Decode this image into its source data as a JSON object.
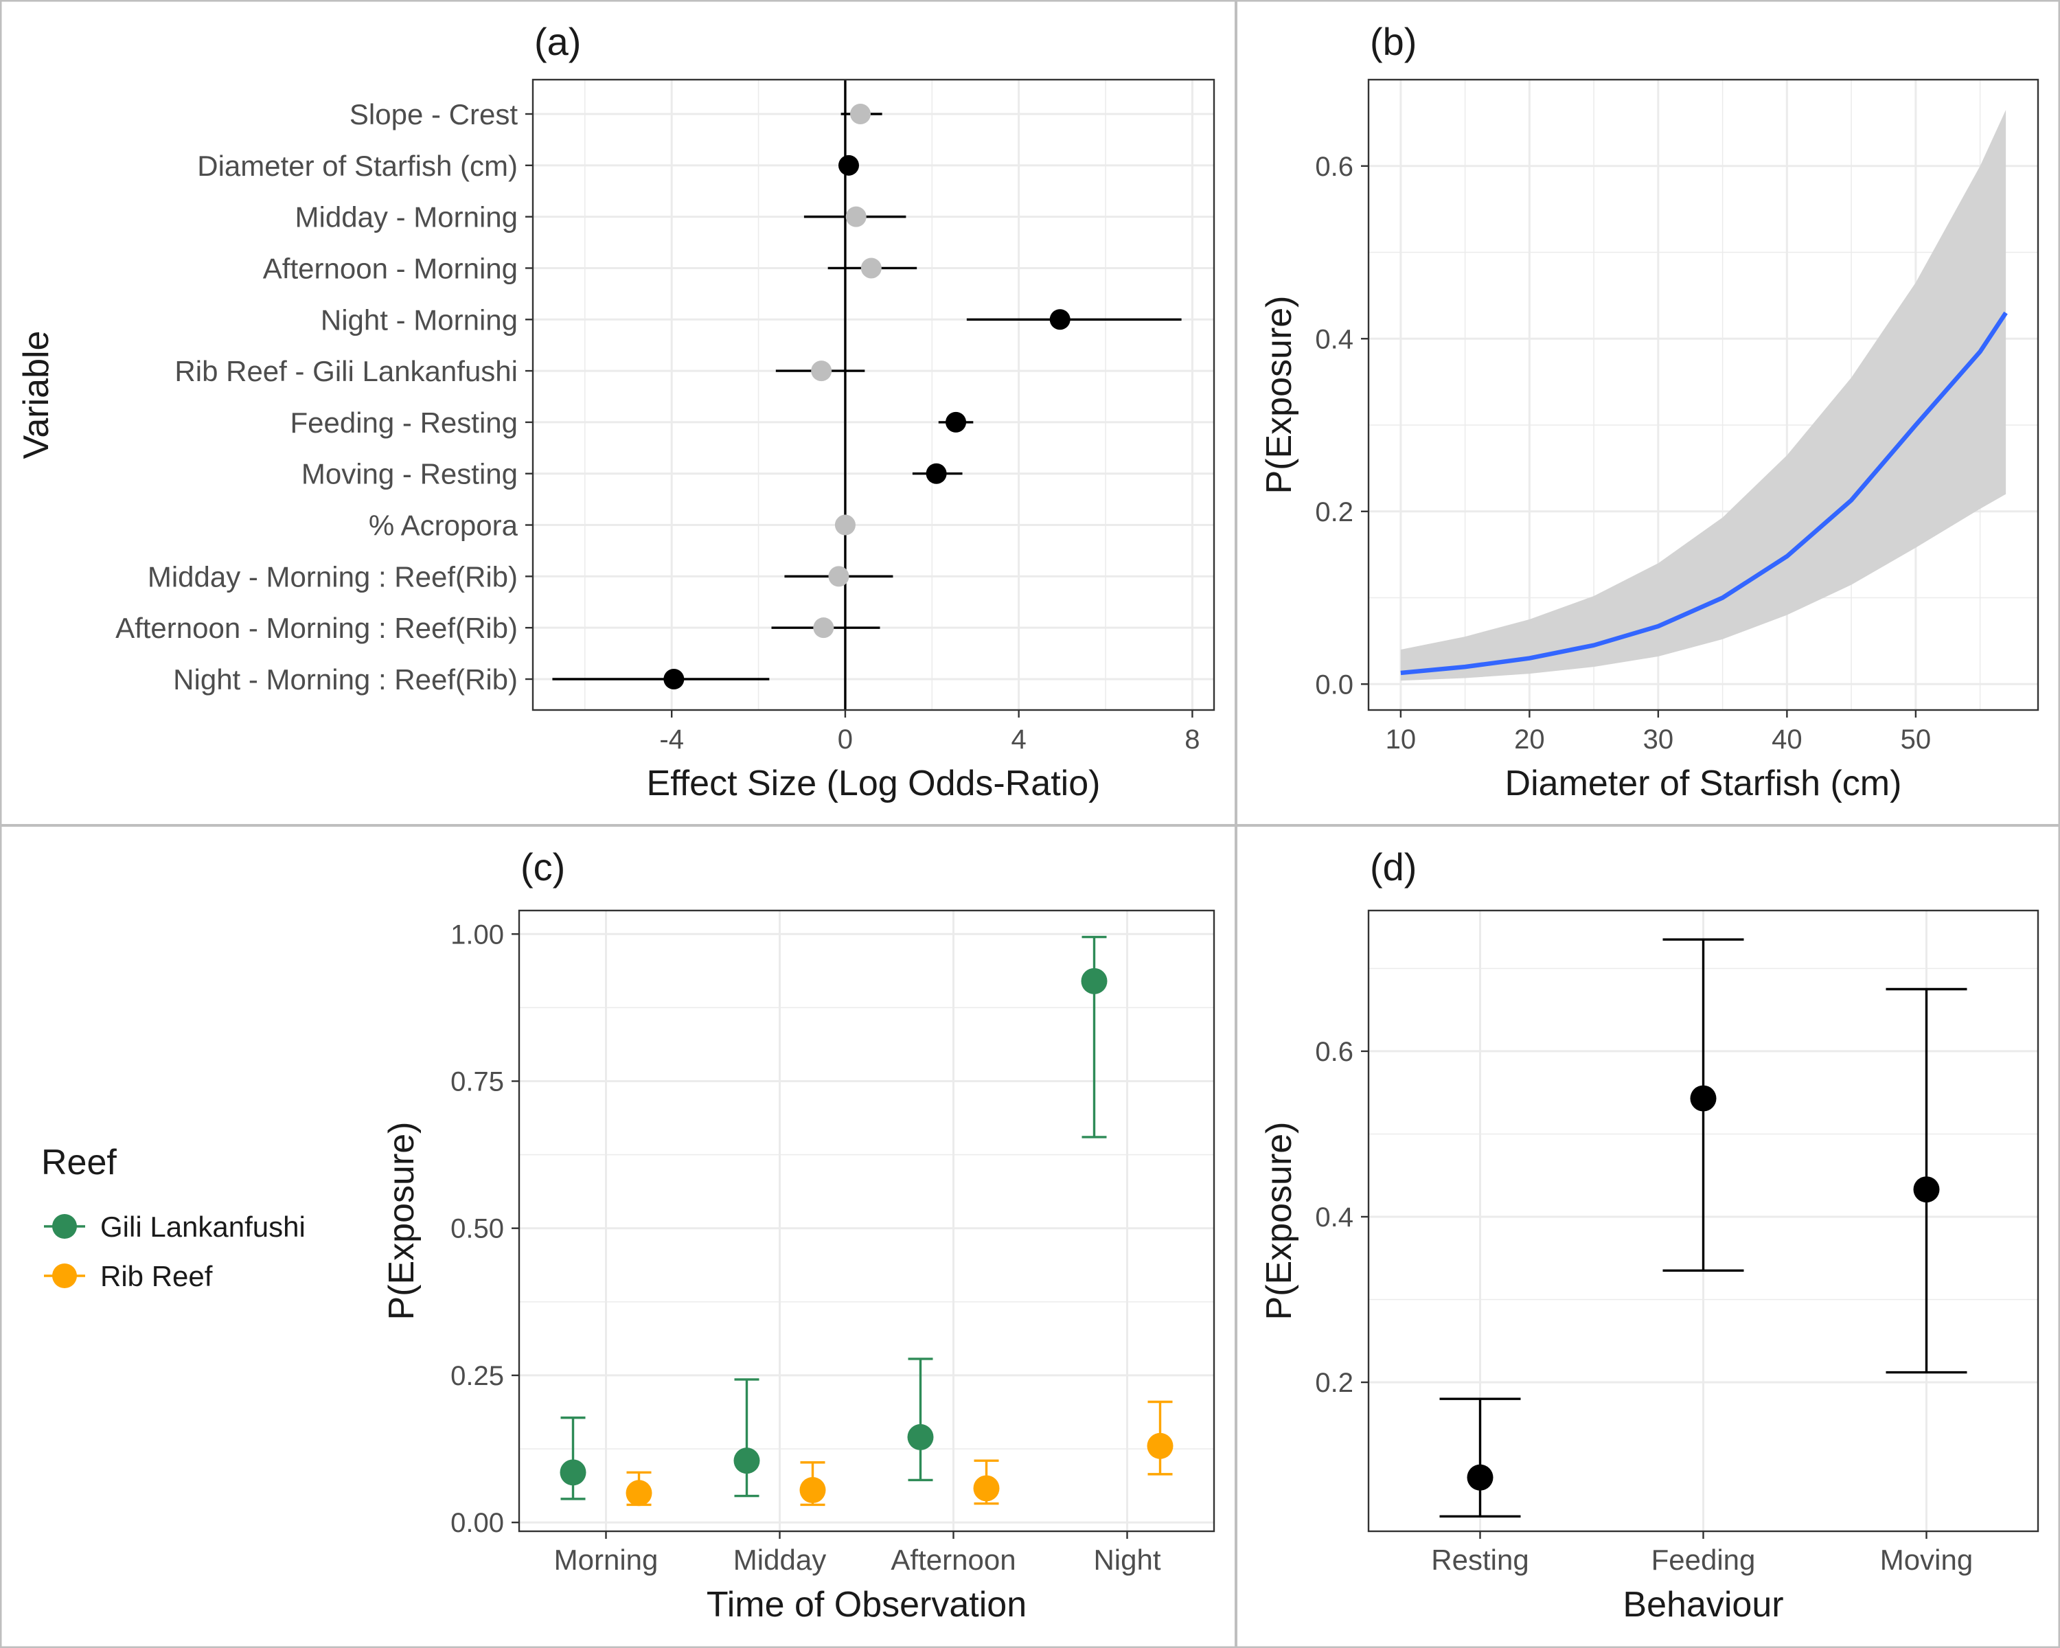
{
  "colors": {
    "grid": "#ebebeb",
    "axis": "#333333",
    "sig_point": "#000000",
    "nonsig_point": "#bebebe",
    "curve": "#3366ff",
    "ribbon": "#d3d3d3",
    "gili": "#2e8b57",
    "rib": "#ffa500",
    "divider": "#bfbfbf"
  },
  "chart_data": [
    {
      "id": "a",
      "panel_label": "(a)",
      "type": "scatter",
      "subtype": "coefficient-plot",
      "xlabel": "Effect Size (Log Odds-Ratio)",
      "ylabel": "Variable",
      "xlim": [
        -7.2,
        8.5
      ],
      "xticks": [
        -4,
        0,
        4,
        8
      ],
      "xtick_labels": [
        "-4",
        "0",
        "4",
        "8"
      ],
      "reference_line_x": 0,
      "grid": true,
      "points": [
        {
          "label": "Slope - Crest",
          "estimate": 0.35,
          "lower": -0.1,
          "upper": 0.85,
          "significant": false
        },
        {
          "label": "Diameter of Starfish (cm)",
          "estimate": 0.08,
          "lower": 0.03,
          "upper": 0.13,
          "significant": true
        },
        {
          "label": "Midday - Morning",
          "estimate": 0.25,
          "lower": -0.95,
          "upper": 1.4,
          "significant": false
        },
        {
          "label": "Afternoon - Morning",
          "estimate": 0.6,
          "lower": -0.4,
          "upper": 1.65,
          "significant": false
        },
        {
          "label": "Night - Morning",
          "estimate": 4.95,
          "lower": 2.8,
          "upper": 7.75,
          "significant": true
        },
        {
          "label": "Rib Reef - Gili Lankanfushi",
          "estimate": -0.55,
          "lower": -1.6,
          "upper": 0.45,
          "significant": false
        },
        {
          "label": "Feeding - Resting",
          "estimate": 2.55,
          "lower": 2.15,
          "upper": 2.95,
          "significant": true
        },
        {
          "label": "Moving - Resting",
          "estimate": 2.1,
          "lower": 1.55,
          "upper": 2.7,
          "significant": true
        },
        {
          "label": "% Acropora",
          "estimate": 0.0,
          "lower": -0.05,
          "upper": 0.05,
          "significant": false
        },
        {
          "label": "Midday - Morning : Reef(Rib)",
          "estimate": -0.15,
          "lower": -1.4,
          "upper": 1.1,
          "significant": false
        },
        {
          "label": "Afternoon - Morning : Reef(Rib)",
          "estimate": -0.5,
          "lower": -1.7,
          "upper": 0.8,
          "significant": false
        },
        {
          "label": "Night - Morning : Reef(Rib)",
          "estimate": -3.95,
          "lower": -6.75,
          "upper": -1.75,
          "significant": true
        }
      ]
    },
    {
      "id": "b",
      "panel_label": "(b)",
      "type": "line",
      "subtype": "line-with-confidence-ribbon",
      "xlabel": "Diameter of Starfish (cm)",
      "ylabel": "P(Exposure)",
      "xlim": [
        7.5,
        59.5
      ],
      "ylim": [
        -0.03,
        0.7
      ],
      "xticks": [
        10,
        20,
        30,
        40,
        50
      ],
      "xtick_labels": [
        "10",
        "20",
        "30",
        "40",
        "50"
      ],
      "yticks": [
        0.0,
        0.2,
        0.4,
        0.6
      ],
      "ytick_labels": [
        "0.0",
        "0.2",
        "0.4",
        "0.6"
      ],
      "grid": true,
      "series": [
        {
          "x": [
            10,
            15,
            20,
            25,
            30,
            35,
            40,
            45,
            50,
            55,
            57
          ],
          "y": [
            0.013,
            0.02,
            0.03,
            0.045,
            0.067,
            0.1,
            0.148,
            0.213,
            0.3,
            0.385,
            0.43
          ],
          "lower": [
            0.004,
            0.007,
            0.012,
            0.02,
            0.032,
            0.052,
            0.08,
            0.115,
            0.158,
            0.203,
            0.22
          ],
          "upper": [
            0.04,
            0.055,
            0.075,
            0.102,
            0.14,
            0.193,
            0.265,
            0.355,
            0.465,
            0.6,
            0.665
          ]
        }
      ]
    },
    {
      "id": "c",
      "panel_label": "(c)",
      "type": "scatter",
      "subtype": "point-with-errorbars",
      "xlabel": "Time of Observation",
      "ylabel": "P(Exposure)",
      "categories": [
        "Morning",
        "Midday",
        "Afternoon",
        "Night"
      ],
      "ylim": [
        -0.015,
        1.04
      ],
      "yticks": [
        0.0,
        0.25,
        0.5,
        0.75,
        1.0
      ],
      "ytick_labels": [
        "0.00",
        "0.25",
        "0.50",
        "0.75",
        "1.00"
      ],
      "grid": true,
      "legend": {
        "title": "Reef",
        "position": "left",
        "entries": [
          "Gili Lankanfushi",
          "Rib Reef"
        ]
      },
      "series": [
        {
          "name": "Gili Lankanfushi",
          "color": "#2e8b57",
          "values": [
            0.085,
            0.105,
            0.145,
            0.92
          ],
          "lower": [
            0.04,
            0.045,
            0.072,
            0.655
          ],
          "upper": [
            0.178,
            0.243,
            0.278,
            0.995
          ]
        },
        {
          "name": "Rib Reef",
          "color": "#ffa500",
          "values": [
            0.05,
            0.055,
            0.058,
            0.13
          ],
          "lower": [
            0.03,
            0.03,
            0.032,
            0.082
          ],
          "upper": [
            0.085,
            0.102,
            0.105,
            0.205
          ]
        }
      ]
    },
    {
      "id": "d",
      "panel_label": "(d)",
      "type": "scatter",
      "subtype": "point-with-errorbars",
      "xlabel": "Behaviour",
      "ylabel": "P(Exposure)",
      "categories": [
        "Resting",
        "Feeding",
        "Moving"
      ],
      "ylim": [
        0.02,
        0.77
      ],
      "yticks": [
        0.2,
        0.4,
        0.6
      ],
      "ytick_labels": [
        "0.2",
        "0.4",
        "0.6"
      ],
      "grid": true,
      "series": [
        {
          "color": "#000000",
          "values": [
            0.085,
            0.543,
            0.433
          ],
          "lower": [
            0.038,
            0.335,
            0.212
          ],
          "upper": [
            0.18,
            0.735,
            0.675
          ]
        }
      ]
    }
  ]
}
